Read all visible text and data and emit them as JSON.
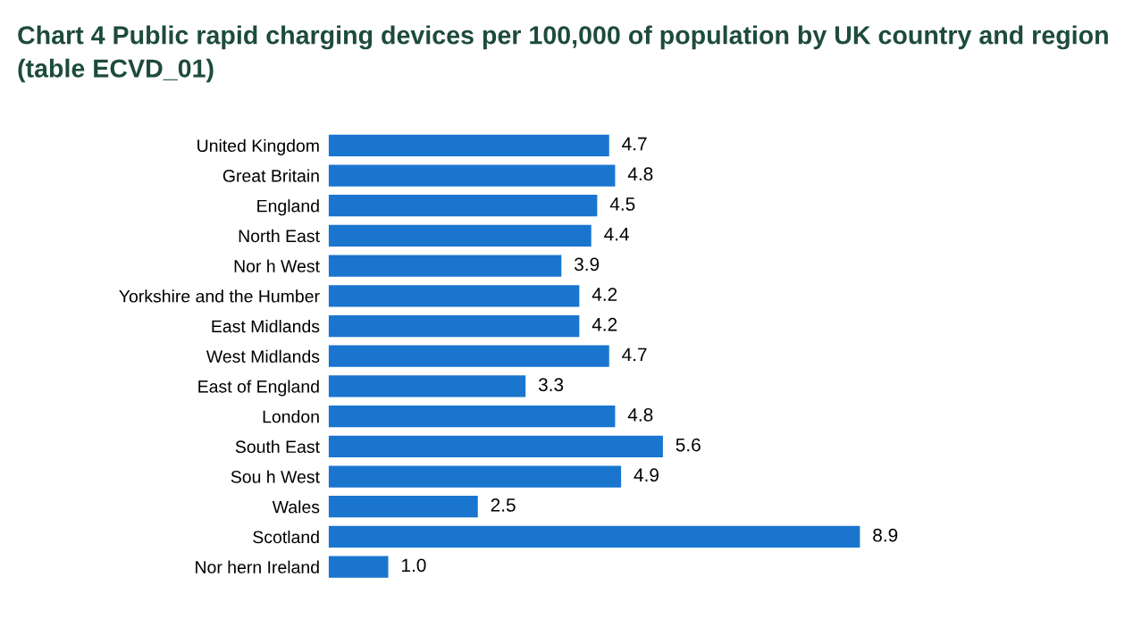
{
  "chart_data": {
    "type": "bar",
    "orientation": "horizontal",
    "title": "Chart 4 Public rapid charging devices per 100,000 of population by UK country and region (table ECVD_01)",
    "categories": [
      "United Kingdom",
      "Great Britain",
      "England",
      "North East",
      "Nor h West",
      "Yorkshire and the Humber",
      "East Midlands",
      "West Midlands",
      "East of England",
      "London",
      "South East",
      "Sou h West",
      "Wales",
      "Scotland",
      "Nor hern Ireland"
    ],
    "values": [
      4.7,
      4.8,
      4.5,
      4.4,
      3.9,
      4.2,
      4.2,
      4.7,
      3.3,
      4.8,
      5.6,
      4.9,
      2.5,
      8.9,
      1.0
    ],
    "value_labels": [
      "4.7",
      "4.8",
      "4.5",
      "4.4",
      "3.9",
      "4.2",
      "4.2",
      "4.7",
      "3.3",
      "4.8",
      "5.6",
      "4.9",
      "2.5",
      "8.9",
      "1.0"
    ],
    "color": "#1a75cf",
    "grid": false,
    "tick_labels": "y"
  }
}
